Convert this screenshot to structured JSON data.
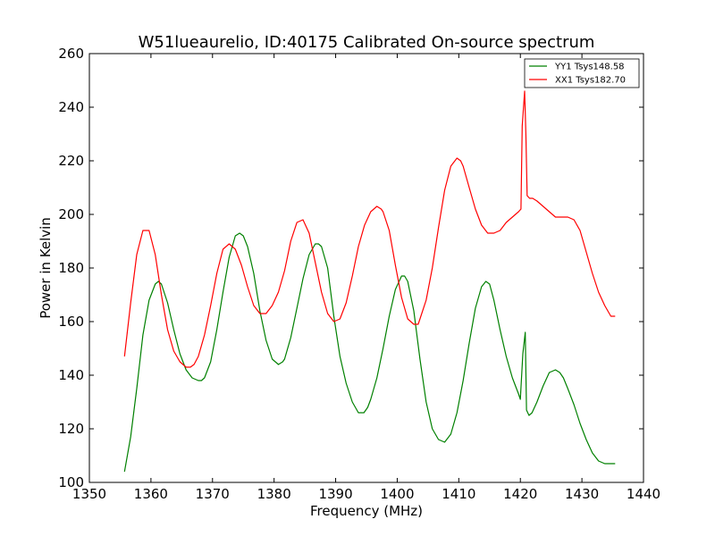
{
  "chart_data": {
    "type": "line",
    "title": "W51lueaurelio, ID:40175 Calibrated On-source spectrum",
    "xlabel": "Frequency (MHz)",
    "ylabel": "Power in Kelvin",
    "xlim": [
      1350,
      1440
    ],
    "ylim": [
      100,
      260
    ],
    "xticks": [
      1350,
      1360,
      1370,
      1380,
      1390,
      1400,
      1410,
      1420,
      1430,
      1440
    ],
    "yticks": [
      100,
      120,
      140,
      160,
      180,
      200,
      220,
      240,
      260
    ],
    "grid": false,
    "legend_position": "top-right",
    "series": [
      {
        "name": "YY1 Tsys148.58",
        "color": "#008000",
        "x": [
          1355.7,
          1356.7,
          1357.7,
          1358.7,
          1359.7,
          1360.7,
          1361.2,
          1361.7,
          1362.7,
          1363.7,
          1364.7,
          1365.7,
          1366.7,
          1367.7,
          1368.2,
          1368.7,
          1369.7,
          1370.7,
          1371.7,
          1372.7,
          1373.7,
          1374.4,
          1375.0,
          1375.7,
          1376.7,
          1377.7,
          1378.7,
          1379.7,
          1380.7,
          1381.4,
          1381.7,
          1382.7,
          1383.7,
          1384.7,
          1385.7,
          1386.7,
          1387.2,
          1387.7,
          1388.7,
          1389.7,
          1390.7,
          1391.7,
          1392.7,
          1393.7,
          1394.6,
          1395.2,
          1395.7,
          1396.7,
          1397.7,
          1398.7,
          1399.7,
          1400.7,
          1401.2,
          1401.7,
          1402.7,
          1403.7,
          1404.7,
          1405.7,
          1406.7,
          1407.7,
          1408.7,
          1409.7,
          1410.7,
          1411.7,
          1412.7,
          1413.7,
          1414.4,
          1415.0,
          1415.7,
          1416.7,
          1417.7,
          1418.7,
          1419.7,
          1420.0,
          1420.4,
          1420.8,
          1421.0,
          1421.4,
          1421.9,
          1422.7,
          1423.7,
          1424.7,
          1425.7,
          1426.4,
          1427.0,
          1427.7,
          1428.7,
          1429.7,
          1430.7,
          1431.7,
          1432.7,
          1433.7,
          1434.7,
          1435.4
        ],
        "values": [
          104,
          117,
          135,
          155,
          168,
          174,
          175,
          174,
          167,
          157,
          148,
          142,
          139,
          138,
          138,
          139,
          145,
          157,
          171,
          184,
          192,
          193,
          192,
          188,
          178,
          164,
          153,
          146,
          144,
          145,
          146,
          154,
          165,
          176,
          185,
          189,
          189,
          188,
          180,
          162,
          147,
          137,
          130,
          126,
          126,
          128,
          131,
          139,
          150,
          162,
          172,
          177,
          177,
          175,
          164,
          146,
          130,
          120,
          116,
          115,
          118,
          126,
          138,
          152,
          165,
          173,
          175,
          174,
          168,
          157,
          147,
          139,
          133,
          131,
          148,
          156,
          127,
          125,
          126,
          130,
          136,
          141,
          142,
          141,
          139,
          135,
          129,
          122,
          116,
          111,
          108,
          107,
          107,
          107
        ]
      },
      {
        "name": "XX1 Tsys182.70",
        "color": "#ff0000",
        "x": [
          1355.7,
          1356.7,
          1357.7,
          1358.7,
          1359.7,
          1360.7,
          1361.7,
          1362.7,
          1363.7,
          1364.7,
          1365.7,
          1366.4,
          1367.0,
          1367.7,
          1368.7,
          1369.7,
          1370.7,
          1371.7,
          1372.7,
          1373.7,
          1374.7,
          1375.7,
          1376.7,
          1377.7,
          1378.7,
          1379.7,
          1380.7,
          1381.7,
          1382.7,
          1383.7,
          1384.7,
          1385.7,
          1386.7,
          1387.7,
          1388.7,
          1389.7,
          1390.7,
          1391.7,
          1392.7,
          1393.7,
          1394.7,
          1395.7,
          1396.7,
          1397.4,
          1397.7,
          1398.7,
          1399.7,
          1400.7,
          1401.7,
          1402.7,
          1403.4,
          1403.7,
          1404.7,
          1405.7,
          1406.7,
          1407.7,
          1408.7,
          1409.7,
          1410.3,
          1410.7,
          1411.7,
          1412.7,
          1413.7,
          1414.7,
          1415.7,
          1416.7,
          1417.7,
          1418.7,
          1419.7,
          1420.1,
          1420.3,
          1420.7,
          1420.9,
          1421.1,
          1421.5,
          1422.0,
          1422.7,
          1423.7,
          1424.7,
          1425.7,
          1426.7,
          1427.7,
          1428.7,
          1429.7,
          1430.7,
          1431.7,
          1432.7,
          1433.7,
          1434.7,
          1435.4
        ],
        "values": [
          147,
          167,
          185,
          194,
          194,
          185,
          170,
          157,
          149,
          145,
          143,
          143,
          144,
          147,
          155,
          166,
          178,
          187,
          189,
          187,
          181,
          173,
          166,
          163,
          163,
          166,
          171,
          179,
          190,
          197,
          198,
          193,
          182,
          171,
          163,
          160,
          161,
          167,
          177,
          188,
          196,
          201,
          203,
          202,
          201,
          194,
          181,
          169,
          161,
          159,
          159,
          161,
          168,
          180,
          195,
          209,
          218,
          221,
          220,
          218,
          210,
          202,
          196,
          193,
          193,
          194,
          197,
          199,
          201,
          202,
          233,
          246,
          230,
          207,
          206,
          206,
          205,
          203,
          201,
          199,
          199,
          199,
          198,
          194,
          186,
          178,
          171,
          166,
          162,
          162
        ]
      }
    ]
  }
}
